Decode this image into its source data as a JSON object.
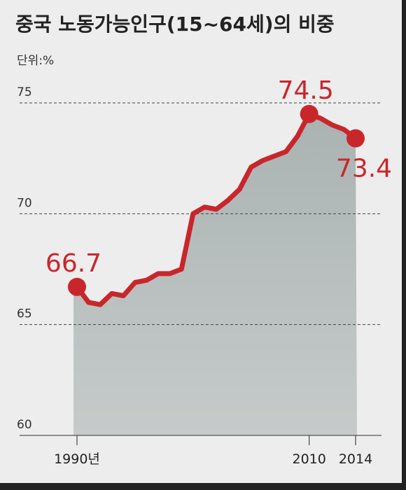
{
  "chart_data": {
    "type": "line",
    "title": "중국 노동가능인구(15~64세)의 비중",
    "unit_label": "단위:%",
    "x": [
      1990,
      1991,
      1992,
      1993,
      1994,
      1995,
      1996,
      1997,
      1998,
      1999,
      2000,
      2001,
      2002,
      2003,
      2004,
      2005,
      2006,
      2007,
      2008,
      2009,
      2010,
      2011,
      2012,
      2013,
      2014
    ],
    "values": [
      66.7,
      66.0,
      65.9,
      66.4,
      66.3,
      66.9,
      67.0,
      67.3,
      67.3,
      67.5,
      70.0,
      70.3,
      70.2,
      70.6,
      71.1,
      72.1,
      72.4,
      72.6,
      72.8,
      73.5,
      74.5,
      74.3,
      74.0,
      73.8,
      73.4
    ],
    "highlight_x": [
      1990,
      2010,
      2014
    ],
    "color": "#c9262c",
    "area_color": "#b3bab9",
    "xlim": [
      1990,
      2014
    ],
    "xticks": [
      {
        "value": 1990,
        "label": "1990년"
      },
      2010,
      2014
    ],
    "ylim": [
      60,
      75
    ],
    "yticks": [
      60,
      65,
      70,
      75
    ],
    "grid": true
  }
}
